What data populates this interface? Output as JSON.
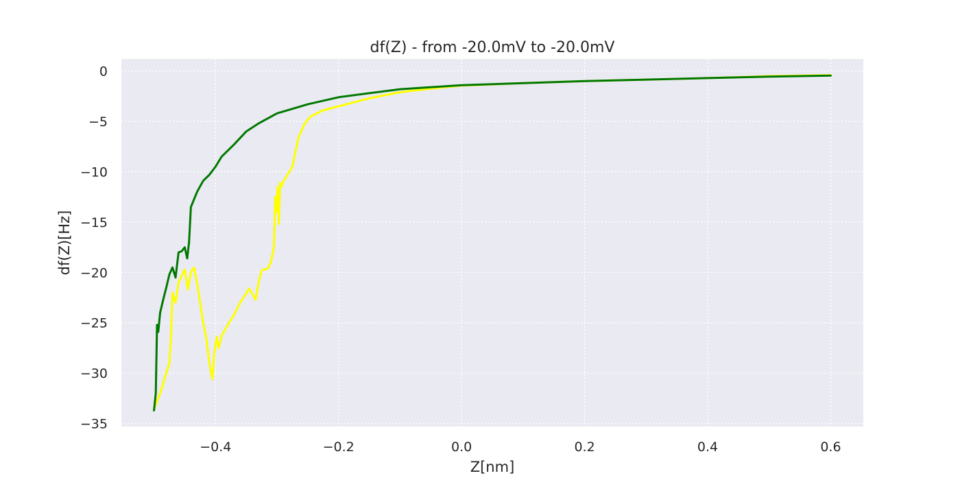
{
  "chart_data": {
    "type": "line",
    "title": "df(Z) - from -20.0mV to -20.0mV",
    "xlabel": "Z[nm]",
    "ylabel": "df(Z)[Hz]",
    "xlim": [
      -0.553,
      0.653
    ],
    "ylim": [
      -35.3,
      1.2
    ],
    "xticks": [
      -0.4,
      -0.2,
      0.0,
      0.2,
      0.4,
      0.6
    ],
    "xtick_labels": [
      "−0.4",
      "−0.2",
      "0.0",
      "0.2",
      "0.4",
      "0.6"
    ],
    "yticks": [
      0,
      -5,
      -10,
      -15,
      -20,
      -25,
      -30,
      -35
    ],
    "ytick_labels": [
      "0",
      "−5",
      "−10",
      "−15",
      "−20",
      "−25",
      "−30",
      "−35"
    ],
    "grid": true,
    "background": "#eaeaf2",
    "series": [
      {
        "color": "#ffff00",
        "points": [
          [
            0.6,
            -0.4
          ],
          [
            0.5,
            -0.5
          ],
          [
            0.4,
            -0.7
          ],
          [
            0.3,
            -0.85
          ],
          [
            0.2,
            -1.0
          ],
          [
            0.1,
            -1.2
          ],
          [
            0.0,
            -1.45
          ],
          [
            -0.05,
            -1.75
          ],
          [
            -0.1,
            -2.1
          ],
          [
            -0.15,
            -2.7
          ],
          [
            -0.2,
            -3.5
          ],
          [
            -0.225,
            -3.9
          ],
          [
            -0.245,
            -4.5
          ],
          [
            -0.255,
            -5.2
          ],
          [
            -0.26,
            -5.9
          ],
          [
            -0.265,
            -6.6
          ],
          [
            -0.27,
            -8.0
          ],
          [
            -0.275,
            -9.5
          ],
          [
            -0.28,
            -10.0
          ],
          [
            -0.29,
            -11.0
          ],
          [
            -0.293,
            -11.5
          ],
          [
            -0.295,
            -11.1
          ],
          [
            -0.297,
            -15.2
          ],
          [
            -0.299,
            -11.5
          ],
          [
            -0.301,
            -14.0
          ],
          [
            -0.303,
            -12.5
          ],
          [
            -0.305,
            -17.5
          ],
          [
            -0.31,
            -19.0
          ],
          [
            -0.315,
            -19.6
          ],
          [
            -0.325,
            -19.8
          ],
          [
            -0.33,
            -21.0
          ],
          [
            -0.335,
            -22.7
          ],
          [
            -0.345,
            -21.6
          ],
          [
            -0.36,
            -23.0
          ],
          [
            -0.37,
            -24.2
          ],
          [
            -0.38,
            -25.2
          ],
          [
            -0.39,
            -26.3
          ],
          [
            -0.395,
            -27.5
          ],
          [
            -0.398,
            -26.4
          ],
          [
            -0.402,
            -28.0
          ],
          [
            -0.405,
            -30.6
          ],
          [
            -0.41,
            -29.0
          ],
          [
            -0.415,
            -26.5
          ],
          [
            -0.42,
            -25.0
          ],
          [
            -0.425,
            -23.0
          ],
          [
            -0.43,
            -21.0
          ],
          [
            -0.435,
            -19.5
          ],
          [
            -0.44,
            -20.0
          ],
          [
            -0.445,
            -21.7
          ],
          [
            -0.45,
            -19.7
          ],
          [
            -0.46,
            -21.0
          ],
          [
            -0.465,
            -23.0
          ],
          [
            -0.47,
            -22.0
          ],
          [
            -0.472,
            -26.0
          ],
          [
            -0.475,
            -29.0
          ],
          [
            -0.48,
            -30.0
          ],
          [
            -0.49,
            -32.0
          ],
          [
            -0.5,
            -33.6
          ]
        ]
      },
      {
        "color": "#007800",
        "points": [
          [
            0.6,
            -0.45
          ],
          [
            0.5,
            -0.55
          ],
          [
            0.4,
            -0.7
          ],
          [
            0.3,
            -0.85
          ],
          [
            0.2,
            -1.0
          ],
          [
            0.1,
            -1.2
          ],
          [
            0.0,
            -1.4
          ],
          [
            -0.1,
            -1.8
          ],
          [
            -0.15,
            -2.2
          ],
          [
            -0.2,
            -2.6
          ],
          [
            -0.25,
            -3.3
          ],
          [
            -0.3,
            -4.2
          ],
          [
            -0.33,
            -5.2
          ],
          [
            -0.35,
            -6.0
          ],
          [
            -0.37,
            -7.3
          ],
          [
            -0.39,
            -8.5
          ],
          [
            -0.4,
            -9.5
          ],
          [
            -0.41,
            -10.3
          ],
          [
            -0.42,
            -10.9
          ],
          [
            -0.43,
            -12.0
          ],
          [
            -0.44,
            -13.5
          ],
          [
            -0.443,
            -17.0
          ],
          [
            -0.446,
            -18.6
          ],
          [
            -0.45,
            -17.5
          ],
          [
            -0.455,
            -17.9
          ],
          [
            -0.46,
            -18.0
          ],
          [
            -0.465,
            -20.5
          ],
          [
            -0.47,
            -19.5
          ],
          [
            -0.475,
            -20.2
          ],
          [
            -0.48,
            -21.5
          ],
          [
            -0.485,
            -22.7
          ],
          [
            -0.49,
            -24.0
          ],
          [
            -0.493,
            -25.9
          ],
          [
            -0.495,
            -25.2
          ],
          [
            -0.497,
            -32.0
          ],
          [
            -0.5,
            -33.7
          ]
        ]
      }
    ]
  }
}
